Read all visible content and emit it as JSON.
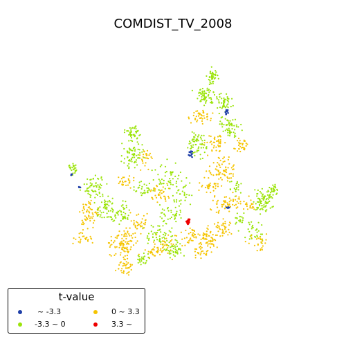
{
  "title": "COMDIST_TV_2008",
  "legend": {
    "title": "t-value",
    "items": [
      {
        "label": "~ -3.3",
        "color": "#1f3fa8"
      },
      {
        "label": "-3.3 ~ 0",
        "color": "#9be40a"
      },
      {
        "label": "0 ~ 3.3",
        "color": "#f5c400"
      },
      {
        "label": "3.3 ~",
        "color": "#ee0000"
      }
    ]
  }
}
